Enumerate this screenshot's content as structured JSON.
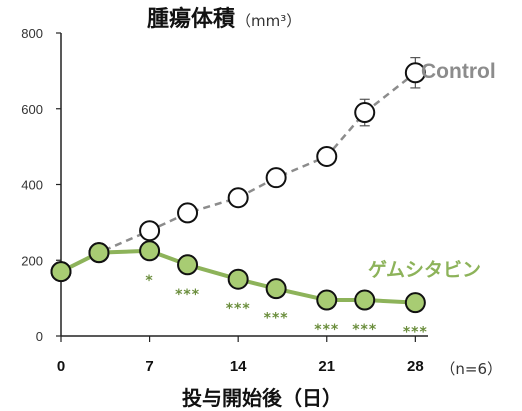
{
  "chart_data": {
    "type": "line",
    "title": "腫瘍体積",
    "title_unit": "（mm³）",
    "xlabel": "投与開始後（日）",
    "n_label": "（n=6）",
    "xlim": [
      0,
      29
    ],
    "ylim": [
      0,
      800
    ],
    "x_ticks": [
      0,
      7,
      14,
      21,
      28
    ],
    "y_ticks": [
      0,
      200,
      400,
      600,
      800
    ],
    "grid": false,
    "series": [
      {
        "name": "Control",
        "color": "#8c8c8c",
        "marker_fill": "#ffffff",
        "line_style": "dashed",
        "x": [
          0,
          3,
          7,
          10,
          14,
          17,
          21,
          24,
          28
        ],
        "y": [
          170,
          220,
          278,
          325,
          365,
          418,
          474,
          590,
          695
        ],
        "error": [
          0,
          0,
          0,
          0,
          0,
          0,
          0,
          35,
          40
        ]
      },
      {
        "name": "ゲムシタビン",
        "color": "#8db35a",
        "marker_fill": "#a8cc73",
        "line_style": "solid",
        "x": [
          0,
          3,
          7,
          10,
          14,
          17,
          21,
          24,
          28
        ],
        "y": [
          170,
          220,
          225,
          188,
          150,
          125,
          95,
          95,
          88
        ],
        "error": [
          0,
          0,
          0,
          0,
          0,
          0,
          0,
          0,
          0
        ]
      }
    ],
    "significance": [
      {
        "x": 7,
        "label": "*"
      },
      {
        "x": 10,
        "label": "***"
      },
      {
        "x": 14,
        "label": "***"
      },
      {
        "x": 17,
        "label": "***"
      },
      {
        "x": 21,
        "label": "***"
      },
      {
        "x": 24,
        "label": "***"
      },
      {
        "x": 28,
        "label": "***"
      }
    ],
    "significance_color": "#6b8e3d"
  }
}
